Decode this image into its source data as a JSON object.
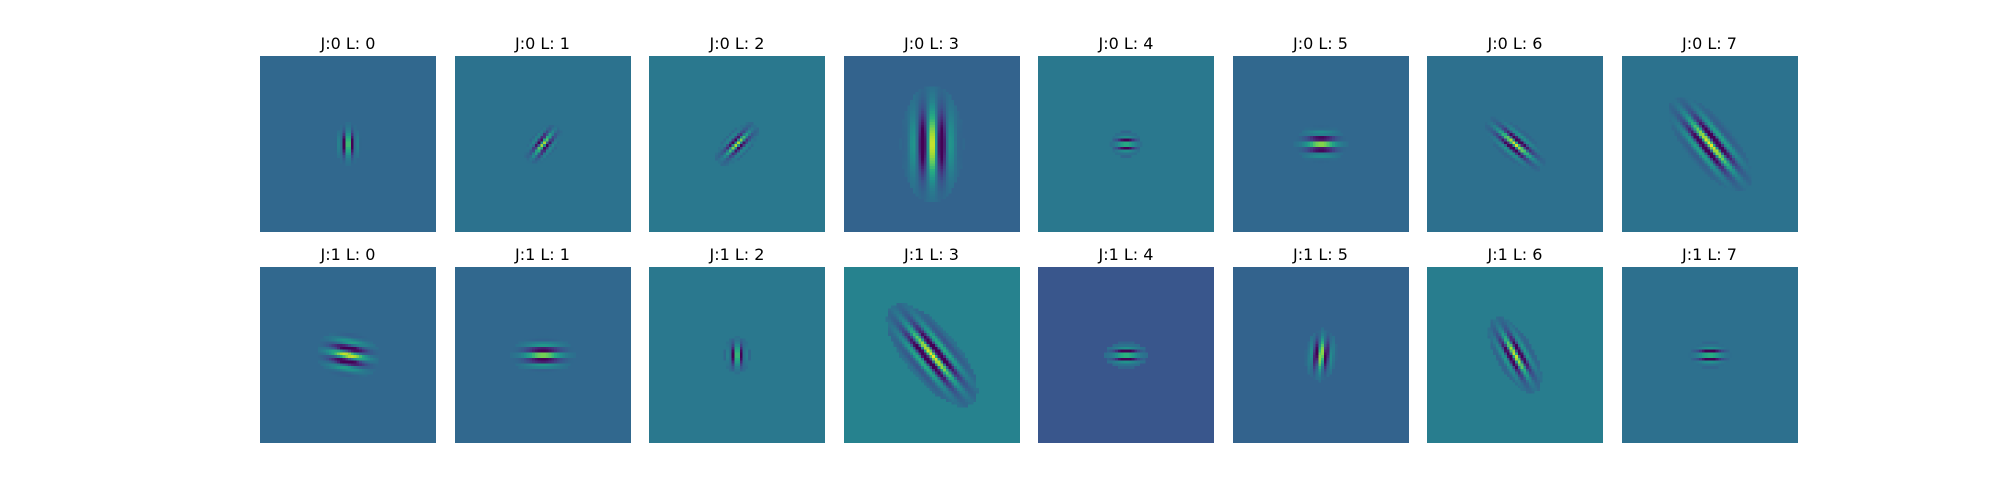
{
  "colors": {
    "background": "#ffffff",
    "colormap": "viridis"
  },
  "panels": [
    {
      "title": "J:0 L: 0",
      "j": 0,
      "l": 0,
      "bg": "#31688e",
      "orientation_deg": 0,
      "envelope_long": 8,
      "envelope_short": 5,
      "wavelength": 9,
      "amplitude": 0.95
    },
    {
      "title": "J:0 L: 1",
      "j": 0,
      "l": 1,
      "bg": "#2c728e",
      "orientation_deg": 38,
      "envelope_long": 9,
      "envelope_short": 5,
      "wavelength": 9,
      "amplitude": 0.85
    },
    {
      "title": "J:0 L: 2",
      "j": 0,
      "l": 2,
      "bg": "#2a788e",
      "orientation_deg": 45,
      "envelope_long": 10,
      "envelope_short": 5,
      "wavelength": 9,
      "amplitude": 0.85
    },
    {
      "title": "J:0 L: 3",
      "j": 0,
      "l": 3,
      "bg": "#33638d",
      "orientation_deg": 0,
      "envelope_long": 22,
      "envelope_short": 12,
      "wavelength": 20,
      "amplitude": 1.0
    },
    {
      "title": "J:0 L: 4",
      "j": 0,
      "l": 4,
      "bg": "#2a788e",
      "orientation_deg": 90,
      "envelope_long": 6,
      "envelope_short": 5,
      "wavelength": 8,
      "amplitude": 0.9
    },
    {
      "title": "J:0 L: 5",
      "j": 0,
      "l": 5,
      "bg": "#31688e",
      "orientation_deg": 90,
      "envelope_long": 10,
      "envelope_short": 7,
      "wavelength": 12,
      "amplitude": 1.0
    },
    {
      "title": "J:0 L: 6",
      "j": 0,
      "l": 6,
      "bg": "#2d708e",
      "orientation_deg": 130,
      "envelope_long": 14,
      "envelope_short": 6,
      "wavelength": 10,
      "amplitude": 0.95
    },
    {
      "title": "J:0 L: 7",
      "j": 0,
      "l": 7,
      "bg": "#2c728e",
      "orientation_deg": 140,
      "envelope_long": 22,
      "envelope_short": 9,
      "wavelength": 13,
      "amplitude": 1.0
    },
    {
      "title": "J:1 L: 0",
      "j": 1,
      "l": 0,
      "bg": "#31688e",
      "orientation_deg": 100,
      "envelope_long": 12,
      "envelope_short": 9,
      "wavelength": 14,
      "amplitude": 1.0
    },
    {
      "title": "J:1 L: 1",
      "j": 1,
      "l": 1,
      "bg": "#31688e",
      "orientation_deg": 90,
      "envelope_long": 12,
      "envelope_short": 7,
      "wavelength": 11,
      "amplitude": 1.0
    },
    {
      "title": "J:1 L: 2",
      "j": 1,
      "l": 2,
      "bg": "#2a788e",
      "orientation_deg": 0,
      "envelope_long": 7,
      "envelope_short": 5,
      "wavelength": 9,
      "amplitude": 0.9
    },
    {
      "title": "J:1 L: 3",
      "j": 1,
      "l": 3,
      "bg": "#26828e",
      "orientation_deg": 140,
      "envelope_long": 24,
      "envelope_short": 10,
      "wavelength": 13,
      "amplitude": 1.0
    },
    {
      "title": "J:1 L: 4",
      "j": 1,
      "l": 4,
      "bg": "#39568c",
      "orientation_deg": 90,
      "envelope_long": 8,
      "envelope_short": 5,
      "wavelength": 8,
      "amplitude": 1.0
    },
    {
      "title": "J:1 L: 5",
      "j": 1,
      "l": 5,
      "bg": "#33638d",
      "orientation_deg": 5,
      "envelope_long": 10,
      "envelope_short": 6,
      "wavelength": 11,
      "amplitude": 1.0
    },
    {
      "title": "J:1 L: 6",
      "j": 1,
      "l": 6,
      "bg": "#287d8e",
      "orientation_deg": 150,
      "envelope_long": 16,
      "envelope_short": 7,
      "wavelength": 11,
      "amplitude": 0.95
    },
    {
      "title": "J:1 L: 7",
      "j": 1,
      "l": 7,
      "bg": "#2d708e",
      "orientation_deg": 90,
      "envelope_long": 8,
      "envelope_short": 5,
      "wavelength": 8,
      "amplitude": 0.95
    }
  ]
}
